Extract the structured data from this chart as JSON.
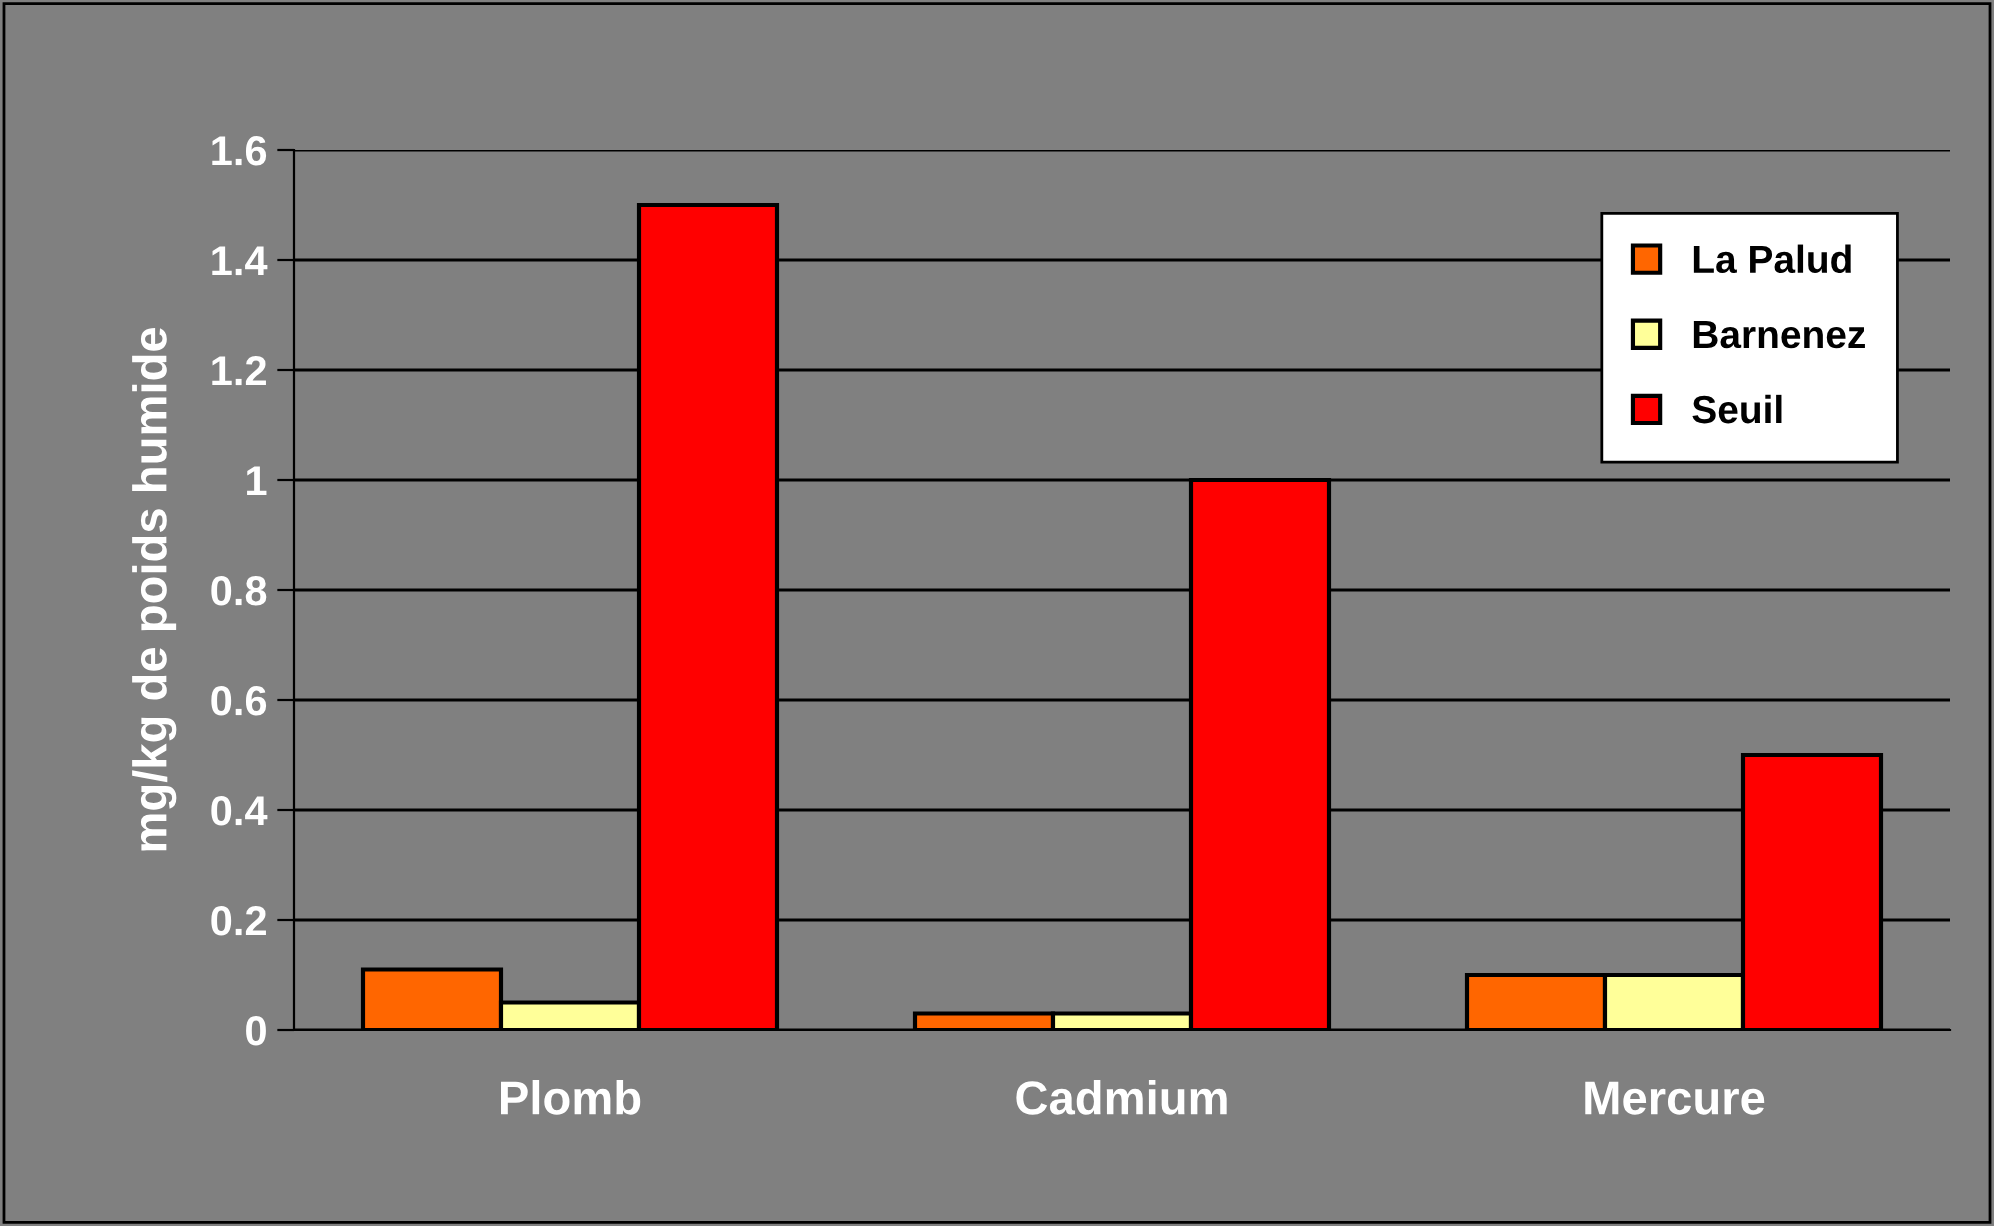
{
  "chart_data": {
    "type": "bar",
    "ylabel": "mg/kg de poids humide",
    "categories": [
      "Plomb",
      "Cadmium",
      "Mercure"
    ],
    "series": [
      {
        "name": "La Palud",
        "color": "#ff6600",
        "values": [
          0.11,
          0.03,
          0.1
        ]
      },
      {
        "name": "Barnenez",
        "color": "#ffff99",
        "values": [
          0.05,
          0.03,
          0.1
        ]
      },
      {
        "name": "Seuil",
        "color": "#ff0000",
        "values": [
          1.5,
          1.0,
          0.5
        ]
      }
    ],
    "ylim": [
      0,
      1.6
    ],
    "yticks": [
      0,
      0.2,
      0.4,
      0.6,
      0.8,
      1,
      1.2,
      1.4,
      1.6
    ],
    "grid": "y",
    "legend": "top right"
  }
}
